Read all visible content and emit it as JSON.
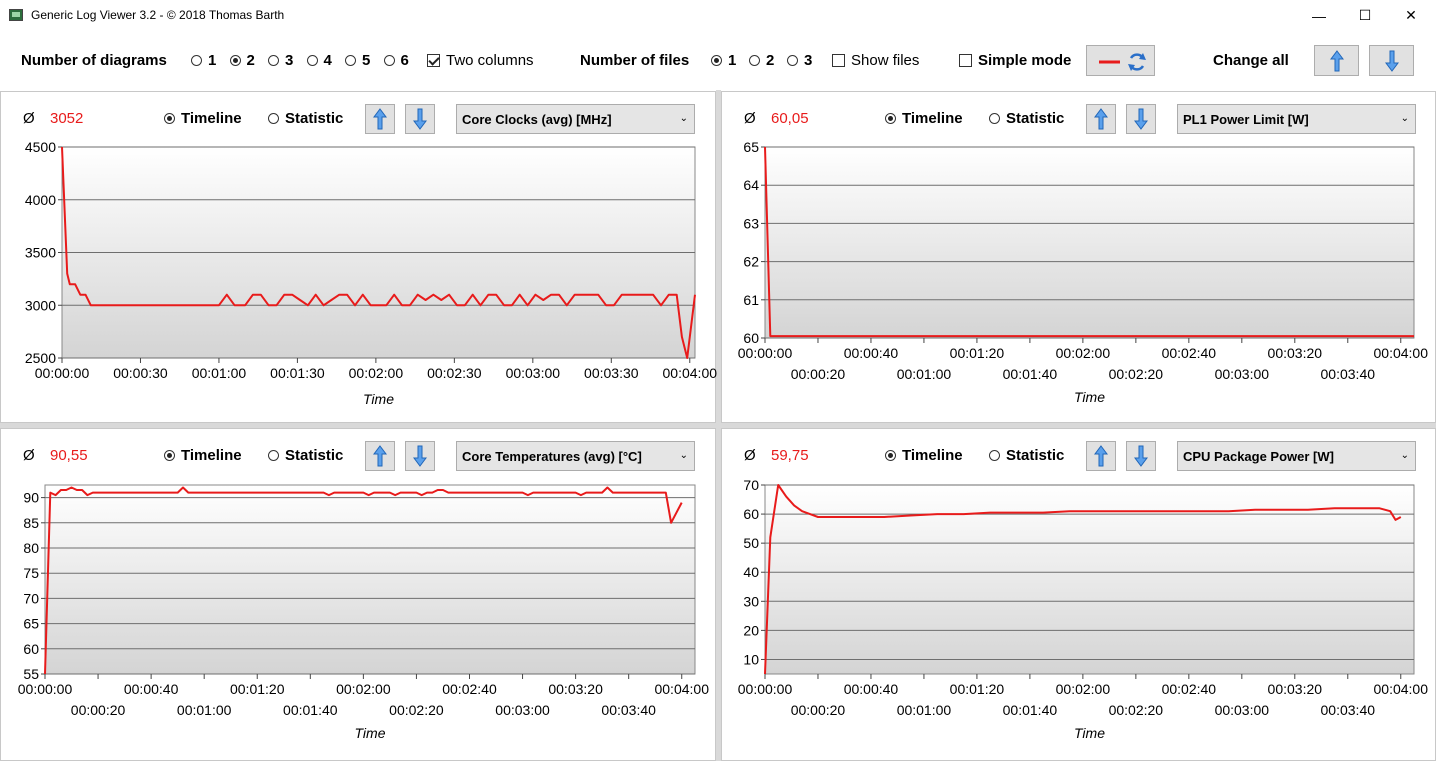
{
  "window": {
    "title": "Generic Log Viewer 3.2 - © 2018 Thomas Barth",
    "minimize": "—",
    "maximize": "☐",
    "close": "✕"
  },
  "toolbar": {
    "diagrams_label": "Number of diagrams",
    "diagram_options": [
      "1",
      "2",
      "3",
      "4",
      "5",
      "6"
    ],
    "diagram_selected": "2",
    "two_columns_label": "Two columns",
    "two_columns_checked": true,
    "files_label": "Number of files",
    "file_options": [
      "1",
      "2",
      "3"
    ],
    "file_selected": "1",
    "show_files_label": "Show files",
    "show_files_checked": false,
    "simple_mode_label": "Simple mode",
    "simple_mode_checked": false,
    "change_all_label": "Change all",
    "accent": "#e81b1b"
  },
  "panels": [
    {
      "avg_symbol": "Ø",
      "avg_value": "3052",
      "timeline_label": "Timeline",
      "statistic_label": "Statistic",
      "mode": "Timeline",
      "sensor": "Core Clocks (avg) [MHz]"
    },
    {
      "avg_symbol": "Ø",
      "avg_value": "60,05",
      "timeline_label": "Timeline",
      "statistic_label": "Statistic",
      "mode": "Timeline",
      "sensor": "PL1 Power Limit [W]"
    },
    {
      "avg_symbol": "Ø",
      "avg_value": "90,55",
      "timeline_label": "Timeline",
      "statistic_label": "Statistic",
      "mode": "Timeline",
      "sensor": "Core Temperatures (avg) [°C]"
    },
    {
      "avg_symbol": "Ø",
      "avg_value": "59,75",
      "timeline_label": "Timeline",
      "statistic_label": "Statistic",
      "mode": "Timeline",
      "sensor": "CPU Package Power [W]"
    }
  ],
  "chart_data": [
    {
      "type": "line",
      "xlabel": "Time",
      "ylabel": "",
      "ylim": [
        2500,
        4500
      ],
      "yticks": [
        2500,
        3000,
        3500,
        4000,
        4500
      ],
      "xlim": [
        0,
        242
      ],
      "xticks": [
        0,
        30,
        60,
        90,
        120,
        150,
        180,
        210,
        240
      ],
      "xtick_labels": [
        "00:00:00",
        "00:00:30",
        "00:01:00",
        "00:01:30",
        "00:02:00",
        "00:02:30",
        "00:03:00",
        "00:03:30",
        "00:04:00"
      ],
      "xtick_staggered": false,
      "color": "#e81b1b",
      "x": [
        0,
        2,
        3,
        5,
        7,
        9,
        11,
        13,
        60,
        63,
        66,
        70,
        73,
        76,
        79,
        82,
        85,
        88,
        91,
        94,
        97,
        100,
        103,
        106,
        109,
        112,
        115,
        118,
        121,
        124,
        127,
        130,
        133,
        136,
        139,
        142,
        145,
        148,
        151,
        154,
        157,
        160,
        163,
        166,
        169,
        172,
        175,
        178,
        181,
        184,
        187,
        190,
        193,
        196,
        199,
        202,
        205,
        208,
        211,
        214,
        217,
        220,
        223,
        226,
        229,
        232,
        235,
        237,
        239,
        241,
        242
      ],
      "y": [
        4500,
        3300,
        3200,
        3200,
        3100,
        3100,
        3000,
        3000,
        3000,
        3100,
        3000,
        3000,
        3100,
        3100,
        3000,
        3000,
        3100,
        3100,
        3050,
        3000,
        3100,
        3000,
        3050,
        3100,
        3100,
        3000,
        3100,
        3000,
        3000,
        3000,
        3100,
        3000,
        3000,
        3100,
        3050,
        3100,
        3050,
        3100,
        3000,
        3000,
        3100,
        3000,
        3100,
        3100,
        3000,
        3000,
        3100,
        3000,
        3100,
        3050,
        3100,
        3100,
        3000,
        3100,
        3100,
        3100,
        3100,
        3000,
        3000,
        3100,
        3100,
        3100,
        3100,
        3100,
        3000,
        3100,
        3100,
        2700,
        2500,
        2900,
        3100
      ]
    },
    {
      "type": "line",
      "xlabel": "Time",
      "ylabel": "",
      "ylim": [
        60,
        65
      ],
      "yticks": [
        60,
        61,
        62,
        63,
        64,
        65
      ],
      "xlim": [
        0,
        245
      ],
      "xticks": [
        0,
        20,
        40,
        60,
        80,
        100,
        120,
        140,
        160,
        180,
        200,
        220,
        240
      ],
      "xtick_labels": [
        "00:00:00",
        "00:00:20",
        "00:00:40",
        "00:01:00",
        "00:01:20",
        "00:01:40",
        "00:02:00",
        "00:02:20",
        "00:02:40",
        "00:03:00",
        "00:03:20",
        "00:03:40",
        "00:04:00"
      ],
      "xtick_staggered": true,
      "color": "#e81b1b",
      "x": [
        0,
        2,
        245
      ],
      "y": [
        65,
        60.05,
        60.05
      ]
    },
    {
      "type": "line",
      "xlabel": "Time",
      "ylabel": "",
      "ylim": [
        55,
        92.5
      ],
      "yticks": [
        55,
        60,
        65,
        70,
        75,
        80,
        85,
        90
      ],
      "xlim": [
        0,
        245
      ],
      "xticks": [
        0,
        20,
        40,
        60,
        80,
        100,
        120,
        140,
        160,
        180,
        200,
        220,
        240
      ],
      "xtick_labels": [
        "00:00:00",
        "00:00:20",
        "00:00:40",
        "00:01:00",
        "00:01:20",
        "00:01:40",
        "00:02:00",
        "00:02:20",
        "00:02:40",
        "00:03:00",
        "00:03:20",
        "00:03:40",
        "00:04:00"
      ],
      "xtick_staggered": true,
      "color": "#e81b1b",
      "x": [
        0,
        2,
        4,
        6,
        8,
        10,
        12,
        14,
        16,
        18,
        20,
        50,
        52,
        54,
        105,
        107,
        109,
        120,
        122,
        124,
        130,
        132,
        134,
        140,
        142,
        144,
        146,
        148,
        150,
        152,
        180,
        182,
        184,
        200,
        202,
        204,
        210,
        212,
        214,
        230,
        232,
        234,
        236,
        238,
        240
      ],
      "y": [
        55,
        91,
        90.5,
        91.5,
        91.5,
        92,
        91.5,
        91.5,
        90.5,
        91,
        91,
        91,
        92,
        91,
        91,
        90.5,
        91,
        91,
        90.5,
        91,
        91,
        90.5,
        91,
        91,
        90.5,
        91,
        91,
        91.5,
        91.5,
        91,
        91,
        90.5,
        91,
        91,
        90.5,
        91,
        91,
        92,
        91,
        91,
        91,
        91,
        85,
        87,
        89
      ]
    },
    {
      "type": "line",
      "xlabel": "Time",
      "ylabel": "",
      "ylim": [
        5,
        70
      ],
      "yticks": [
        10,
        20,
        30,
        40,
        50,
        60,
        70
      ],
      "xlim": [
        0,
        245
      ],
      "xticks": [
        0,
        20,
        40,
        60,
        80,
        100,
        120,
        140,
        160,
        180,
        200,
        220,
        240
      ],
      "xtick_labels": [
        "00:00:00",
        "00:00:20",
        "00:00:40",
        "00:01:00",
        "00:01:20",
        "00:01:40",
        "00:02:00",
        "00:02:20",
        "00:02:40",
        "00:03:00",
        "00:03:20",
        "00:03:40",
        "00:04:00"
      ],
      "xtick_staggered": true,
      "color": "#e81b1b",
      "x": [
        0,
        2,
        5,
        8,
        11,
        14,
        17,
        20,
        23,
        26,
        29,
        32,
        35,
        38,
        45,
        55,
        65,
        75,
        85,
        95,
        105,
        115,
        125,
        135,
        145,
        155,
        165,
        175,
        185,
        195,
        205,
        215,
        225,
        232,
        236,
        238,
        240
      ],
      "y": [
        5,
        52,
        70,
        66,
        63,
        61,
        60,
        59,
        59,
        59,
        59,
        59,
        59,
        59,
        59,
        59.5,
        60,
        60,
        60.5,
        60.5,
        60.5,
        61,
        61,
        61,
        61,
        61,
        61,
        61,
        61.5,
        61.5,
        61.5,
        62,
        62,
        62,
        61,
        58,
        59
      ]
    }
  ]
}
